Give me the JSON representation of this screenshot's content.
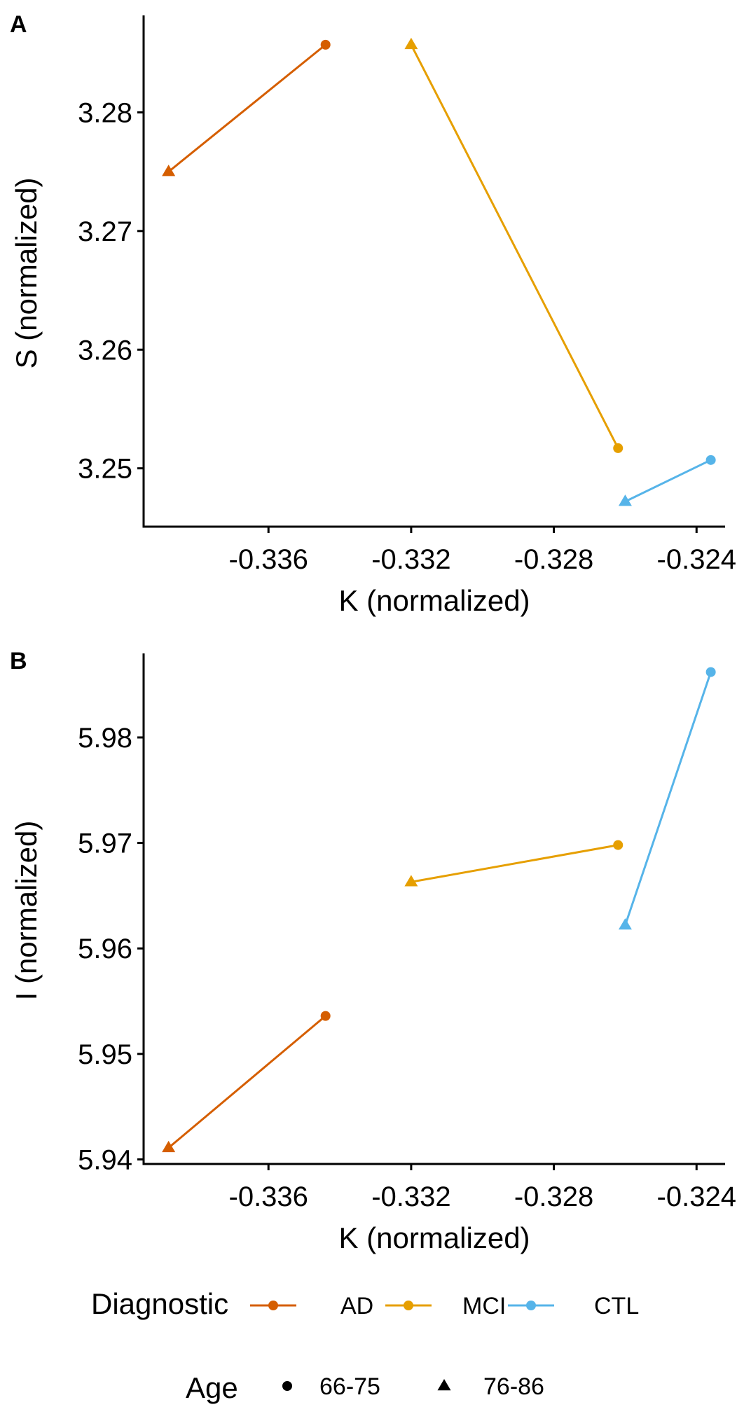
{
  "chart_data": [
    {
      "panel": "A",
      "type": "line",
      "xlabel": "K (normalized)",
      "ylabel": "S (normalized)",
      "xlim": [
        -0.3395,
        -0.3232
      ],
      "ylim": [
        3.2452,
        3.2877
      ],
      "x_ticks": [
        -0.336,
        -0.332,
        -0.328,
        -0.324
      ],
      "x_tick_labels": [
        "-0.336",
        "-0.332",
        "-0.328",
        "-0.324"
      ],
      "y_ticks": [
        3.25,
        3.26,
        3.27,
        3.28
      ],
      "y_tick_labels": [
        "3.25",
        "3.26",
        "3.27",
        "3.28"
      ],
      "grid": false,
      "series": [
        {
          "name": "AD",
          "color": "#D55E00",
          "points": [
            {
              "age": "66-75",
              "x": -0.3344,
              "y": 3.2857
            },
            {
              "age": "76-86",
              "x": -0.3388,
              "y": 3.275
            }
          ]
        },
        {
          "name": "MCI",
          "color": "#E69F00",
          "points": [
            {
              "age": "66-75",
              "x": -0.3262,
              "y": 3.2517
            },
            {
              "age": "76-86",
              "x": -0.332,
              "y": 3.2857
            }
          ]
        },
        {
          "name": "CTL",
          "color": "#56B4E9",
          "points": [
            {
              "age": "66-75",
              "x": -0.3236,
              "y": 3.2507
            },
            {
              "age": "76-86",
              "x": -0.326,
              "y": 3.2472
            }
          ]
        }
      ]
    },
    {
      "panel": "B",
      "type": "line",
      "xlabel": "K (normalized)",
      "ylabel": "I (normalized)",
      "xlim": [
        -0.3395,
        -0.3232
      ],
      "ylim": [
        5.9397,
        5.9875
      ],
      "x_ticks": [
        -0.336,
        -0.332,
        -0.328,
        -0.324
      ],
      "x_tick_labels": [
        "-0.336",
        "-0.332",
        "-0.328",
        "-0.324"
      ],
      "y_ticks": [
        5.94,
        5.95,
        5.96,
        5.97,
        5.98
      ],
      "y_tick_labels": [
        "5.94",
        "5.95",
        "5.96",
        "5.97",
        "5.98"
      ],
      "grid": false,
      "series": [
        {
          "name": "AD",
          "color": "#D55E00",
          "points": [
            {
              "age": "66-75",
              "x": -0.3344,
              "y": 5.9536
            },
            {
              "age": "76-86",
              "x": -0.3388,
              "y": 5.9411
            }
          ]
        },
        {
          "name": "MCI",
          "color": "#E69F00",
          "points": [
            {
              "age": "66-75",
              "x": -0.3262,
              "y": 5.9698
            },
            {
              "age": "76-86",
              "x": -0.332,
              "y": 5.9663
            }
          ]
        },
        {
          "name": "CTL",
          "color": "#56B4E9",
          "points": [
            {
              "age": "66-75",
              "x": -0.3236,
              "y": 5.9862
            },
            {
              "age": "76-86",
              "x": -0.326,
              "y": 5.9622
            }
          ]
        }
      ]
    }
  ],
  "legend": {
    "placement": "bottom",
    "diagnostic_title": "Diagnostic",
    "diagnostic_items": [
      {
        "label": "AD",
        "color": "#D55E00"
      },
      {
        "label": "MCI",
        "color": "#E69F00"
      },
      {
        "label": "CTL",
        "color": "#56B4E9"
      }
    ],
    "age_title": "Age",
    "age_items": [
      {
        "label": "66-75",
        "shape": "circle"
      },
      {
        "label": "76-86",
        "shape": "triangle"
      }
    ]
  }
}
